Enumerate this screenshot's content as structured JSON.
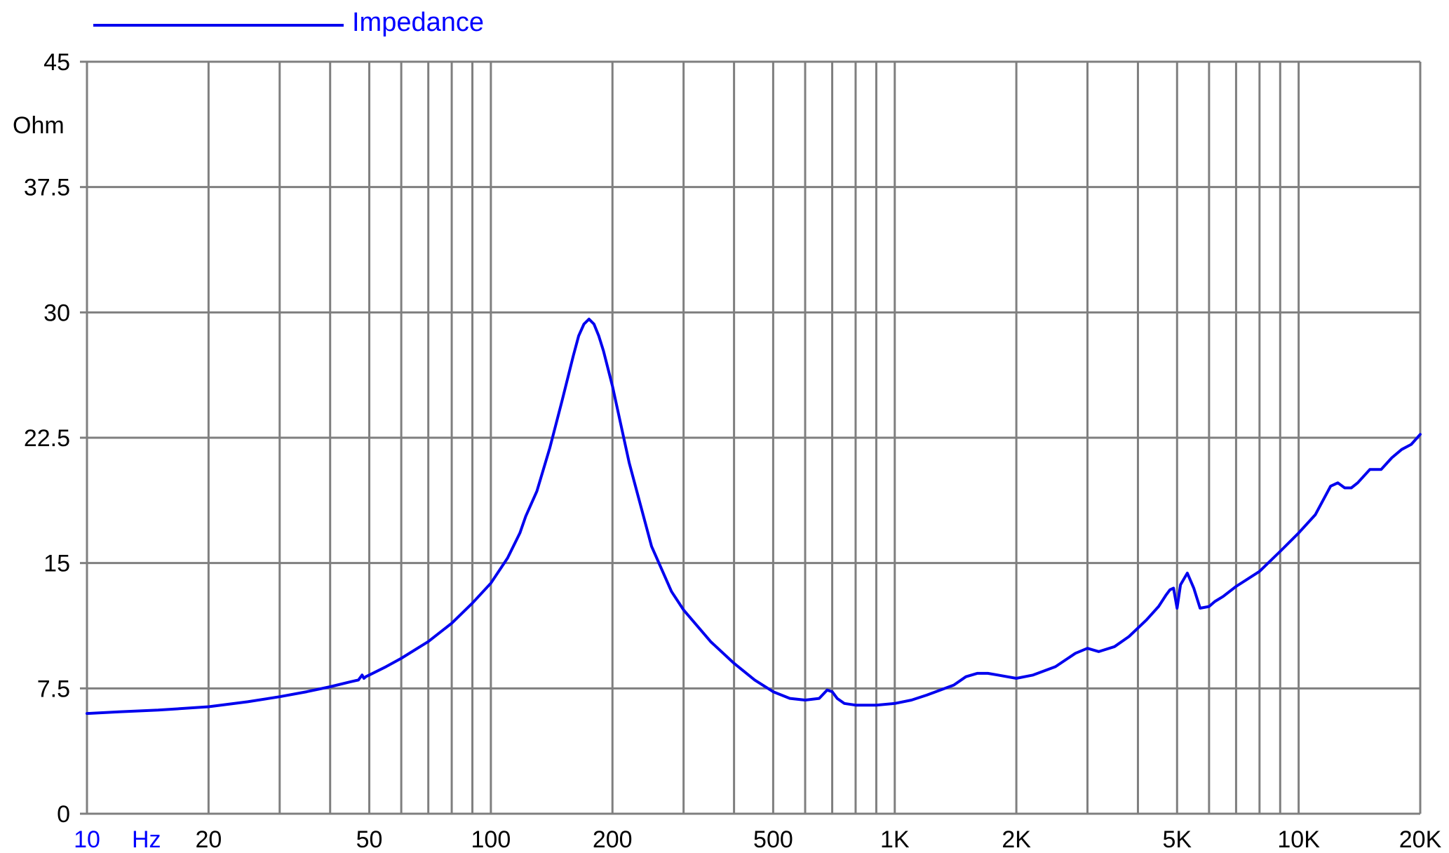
{
  "chart_data": {
    "type": "line",
    "x_scale": "log",
    "xlim": [
      10,
      20000
    ],
    "ylim": [
      0,
      45
    ],
    "grid": true,
    "legend_position": "top-left",
    "y_unit_label": "Ohm",
    "x_unit_label": "Hz",
    "x_tick_labels": [
      {
        "value": 10,
        "label": "10"
      },
      {
        "value": 20,
        "label": "20"
      },
      {
        "value": 50,
        "label": "50"
      },
      {
        "value": 100,
        "label": "100"
      },
      {
        "value": 200,
        "label": "200"
      },
      {
        "value": 500,
        "label": "500"
      },
      {
        "value": 1000,
        "label": "1K"
      },
      {
        "value": 2000,
        "label": "2K"
      },
      {
        "value": 5000,
        "label": "5K"
      },
      {
        "value": 10000,
        "label": "10K"
      },
      {
        "value": 20000,
        "label": "20K"
      }
    ],
    "y_tick_labels": [
      {
        "value": 0,
        "label": "0"
      },
      {
        "value": 7.5,
        "label": "7.5"
      },
      {
        "value": 15,
        "label": "15"
      },
      {
        "value": 22.5,
        "label": "22.5"
      },
      {
        "value": 30,
        "label": "30"
      },
      {
        "value": 37.5,
        "label": "37.5"
      },
      {
        "value": 45,
        "label": "45"
      }
    ],
    "x_gridlines": [
      10,
      20,
      30,
      40,
      50,
      60,
      70,
      80,
      90,
      100,
      200,
      300,
      400,
      500,
      600,
      700,
      800,
      900,
      1000,
      2000,
      3000,
      4000,
      5000,
      6000,
      7000,
      8000,
      9000,
      10000,
      20000
    ],
    "y_gridlines": [
      0,
      7.5,
      15,
      22.5,
      30,
      37.5,
      45
    ],
    "series": [
      {
        "name": "Impedance",
        "color": "#0000ee",
        "x": [
          10,
          12,
          15,
          20,
          25,
          30,
          35,
          40,
          45,
          47,
          48,
          48.5,
          49,
          50,
          55,
          60,
          70,
          80,
          90,
          100,
          110,
          118,
          122,
          130,
          140,
          150,
          160,
          165,
          170,
          175,
          180,
          185,
          190,
          200,
          220,
          250,
          280,
          300,
          350,
          400,
          450,
          500,
          550,
          600,
          650,
          680,
          700,
          720,
          750,
          800,
          850,
          900,
          1000,
          1100,
          1200,
          1400,
          1500,
          1600,
          1700,
          1800,
          2000,
          2200,
          2500,
          2800,
          3000,
          3200,
          3500,
          3800,
          4200,
          4500,
          4700,
          4800,
          4900,
          5000,
          5100,
          5300,
          5500,
          5700,
          6000,
          6200,
          6500,
          7000,
          8000,
          9000,
          10000,
          11000,
          12000,
          12500,
          13000,
          13500,
          14000,
          15000,
          15500,
          16000,
          17000,
          18000,
          19000,
          20000
        ],
        "values": [
          6.0,
          6.1,
          6.2,
          6.4,
          6.7,
          7.0,
          7.3,
          7.6,
          7.9,
          8.0,
          8.3,
          8.1,
          8.2,
          8.3,
          8.8,
          9.3,
          10.3,
          11.4,
          12.6,
          13.8,
          15.3,
          16.8,
          17.8,
          19.3,
          21.9,
          24.7,
          27.4,
          28.6,
          29.3,
          29.6,
          29.3,
          28.6,
          27.7,
          25.6,
          21.0,
          16.0,
          13.3,
          12.2,
          10.3,
          9.0,
          8.0,
          7.3,
          6.9,
          6.8,
          6.9,
          7.4,
          7.3,
          6.9,
          6.6,
          6.5,
          6.5,
          6.5,
          6.6,
          6.8,
          7.1,
          7.7,
          8.2,
          8.4,
          8.4,
          8.3,
          8.1,
          8.3,
          8.8,
          9.6,
          9.9,
          9.7,
          10.0,
          10.6,
          11.6,
          12.4,
          13.1,
          13.4,
          13.5,
          12.3,
          13.7,
          14.4,
          13.5,
          12.3,
          12.4,
          12.7,
          13.0,
          13.6,
          14.5,
          15.7,
          16.8,
          17.9,
          19.6,
          19.8,
          19.5,
          19.5,
          19.8,
          20.6,
          20.6,
          20.6,
          21.3,
          21.8,
          22.1,
          22.7
        ]
      }
    ]
  }
}
